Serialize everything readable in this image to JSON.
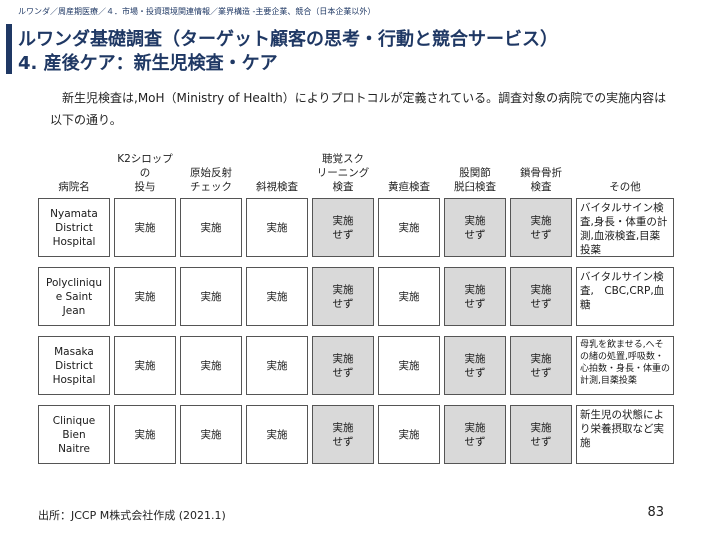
{
  "breadcrumb": "ルワンダ／周産期医療／４．市場・投資環境関連情報／業界構造 -主要企業、競合（日本企業以外）",
  "title_line1": "ルワンダ基礎調査（ターゲット顧客の思考・行動と競合サービス）",
  "title_line2": "4. 産後ケア：新生児検査・ケア",
  "intro": "新生児検査は,MoH（Ministry of Health）によりプロトコルが定義されている。調査対象の病院での実施内容は以下の通り。",
  "table": {
    "headers": [
      "病院名",
      "K2シロップの\n投与",
      "原始反射\nチェック",
      "斜視検査",
      "聴覚スク\nリーニング\n検査",
      "黄疸検査",
      "股関節\n脱臼検査",
      "鎖骨骨折\n検査",
      "その他"
    ],
    "rows": [
      {
        "hospital": "Nyamata\nDistrict\nHospital",
        "k2": "実施",
        "reflex": "実施",
        "strabismus": "実施",
        "hearing": "実施\nせず",
        "jaundice": "実施",
        "hip": "実施\nせず",
        "clavicle": "実施\nせず",
        "other": "バイタルサイン検査,身長・体重の計測,血液検査,目薬投薬"
      },
      {
        "hospital": "Polycliniqu\ne Saint\nJean",
        "k2": "実施",
        "reflex": "実施",
        "strabismus": "実施",
        "hearing": "実施\nせず",
        "jaundice": "実施",
        "hip": "実施\nせず",
        "clavicle": "実施\nせず",
        "other": "バイタルサイン検査,　CBC,CRP,血糖"
      },
      {
        "hospital": "Masaka\nDistrict\nHospital",
        "k2": "実施",
        "reflex": "実施",
        "strabismus": "実施",
        "hearing": "実施\nせず",
        "jaundice": "実施",
        "hip": "実施\nせず",
        "clavicle": "実施\nせず",
        "other": "母乳を飲ませる,へその緒の処置,呼吸数・心拍数・身長・体重の計測,目薬投薬"
      },
      {
        "hospital": "Clinique\nBien\nNaitre",
        "k2": "実施",
        "reflex": "実施",
        "strabismus": "実施",
        "hearing": "実施\nせず",
        "jaundice": "実施",
        "hip": "実施\nせず",
        "clavicle": "実施\nせず",
        "other": "新生児の状態により栄養摂取など実施"
      }
    ]
  },
  "source": "出所：JCCP M株式会社作成 (2021.1)",
  "page_number": "83",
  "colors": {
    "accent": "#1f3864",
    "shaded_cell": "#d9d9d9"
  }
}
